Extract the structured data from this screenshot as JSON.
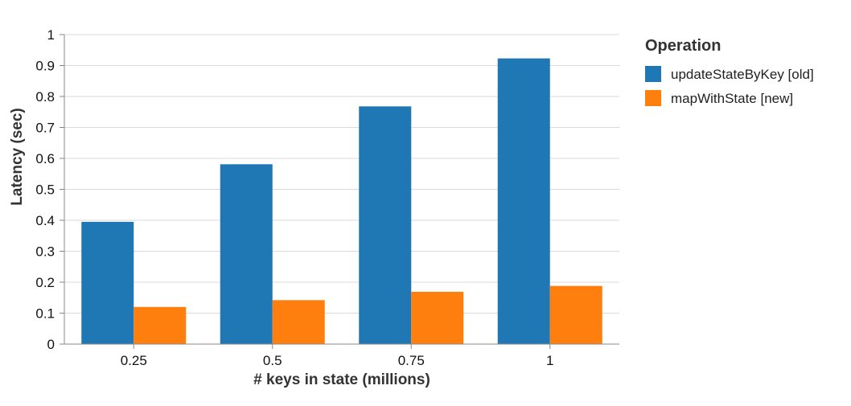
{
  "chart_data": {
    "type": "bar",
    "categories": [
      "0.25",
      "0.5",
      "0.75",
      "1"
    ],
    "series": [
      {
        "name": "updateStateByKey [old]",
        "values": [
          0.395,
          0.581,
          0.768,
          0.923
        ]
      },
      {
        "name": "mapWithState [new]",
        "values": [
          0.12,
          0.142,
          0.169,
          0.188
        ]
      }
    ],
    "xlabel": "# keys in state (millions)",
    "ylabel": "Latency (sec)",
    "ylim": [
      0,
      1
    ],
    "yticks": [
      "0",
      "0.1",
      "0.2",
      "0.3",
      "0.4",
      "0.5",
      "0.6",
      "0.7",
      "0.8",
      "0.9",
      "1"
    ],
    "grid": true,
    "legend_title": "Operation",
    "legend_position": "right",
    "colors": [
      "#1f77b4",
      "#ff7f0e"
    ],
    "gridline_color": "#d9d9d9",
    "axis_color": "#888888"
  }
}
